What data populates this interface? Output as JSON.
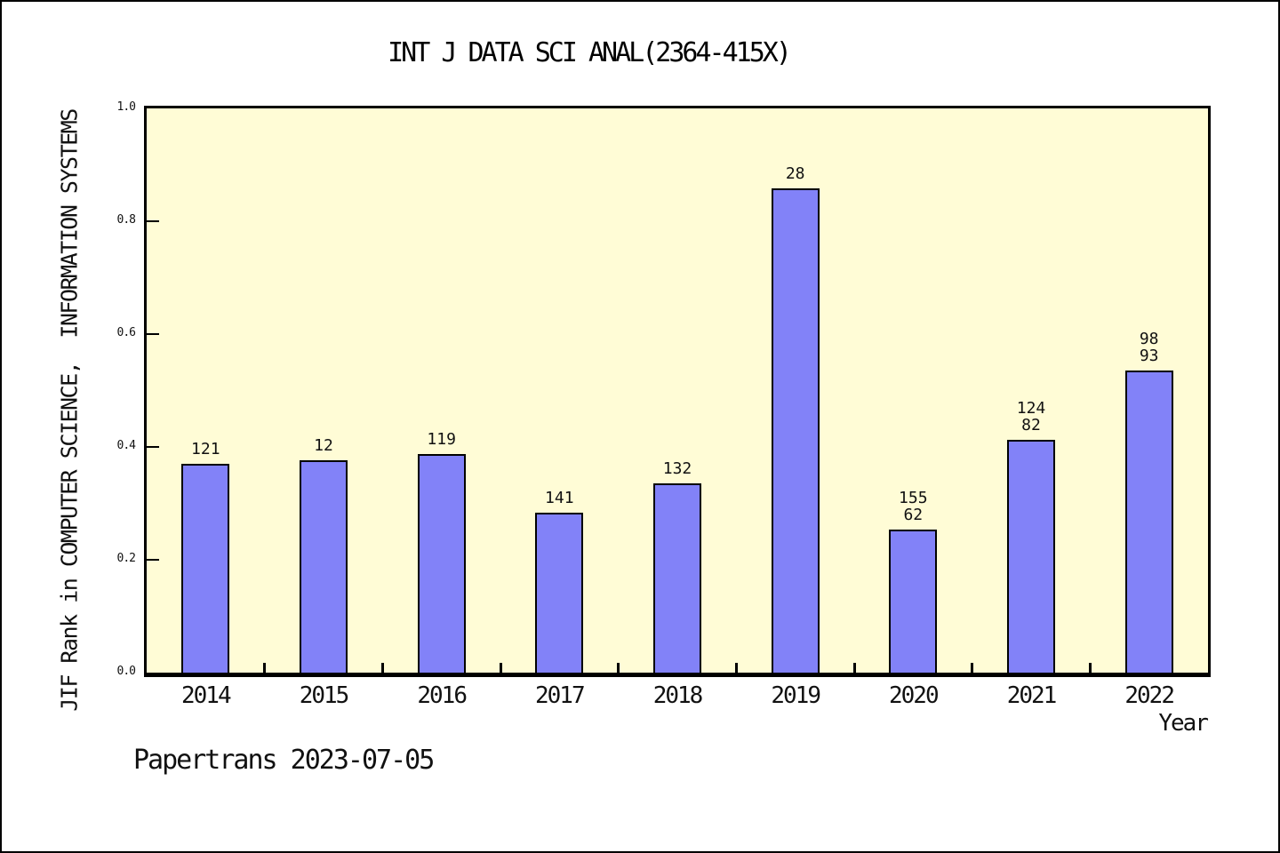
{
  "header": {
    "title": "INT J DATA SCI ANAL(2364-415X)"
  },
  "footer": {
    "credit": "Papertrans 2023-07-05"
  },
  "chart_data": {
    "type": "bar",
    "title": "INT J DATA SCI ANAL(2364-415X)",
    "xlabel": "Year",
    "ylabel": "JIF Rank in COMPUTER SCIENCE,  INFORMATION SYSTEMS",
    "categories": [
      "2014",
      "2015",
      "2016",
      "2017",
      "2018",
      "2019",
      "2020",
      "2021",
      "2022"
    ],
    "values": [
      0.37,
      0.377,
      0.387,
      0.283,
      0.335,
      0.859,
      0.254,
      0.412,
      0.535
    ],
    "bar_labels": [
      [
        "121"
      ],
      [
        "12"
      ],
      [
        "119"
      ],
      [
        "141"
      ],
      [
        "132"
      ],
      [
        "28"
      ],
      [
        "155",
        "62"
      ],
      [
        "124",
        "82"
      ],
      [
        "98",
        "93"
      ]
    ],
    "ylim": [
      0.0,
      1.0
    ],
    "yticks": [
      {
        "v": 0.0,
        "label": "0.0"
      },
      {
        "v": 0.2,
        "label": "0.2"
      },
      {
        "v": 0.4,
        "label": "0.4"
      },
      {
        "v": 0.6,
        "label": "0.6"
      },
      {
        "v": 0.8,
        "label": "0.8"
      },
      {
        "v": 1.0,
        "label": "1.0"
      }
    ],
    "grid": false,
    "legend": null,
    "layout": {
      "tick_marks": "inward",
      "category_boundary_ticks": true
    },
    "colors": {
      "bar_fill": "#8282F8",
      "bar_border": "#000000",
      "plot_bg": "#FFFCD6",
      "axis": "#000000",
      "page_bg": "#FFFFFF"
    }
  }
}
